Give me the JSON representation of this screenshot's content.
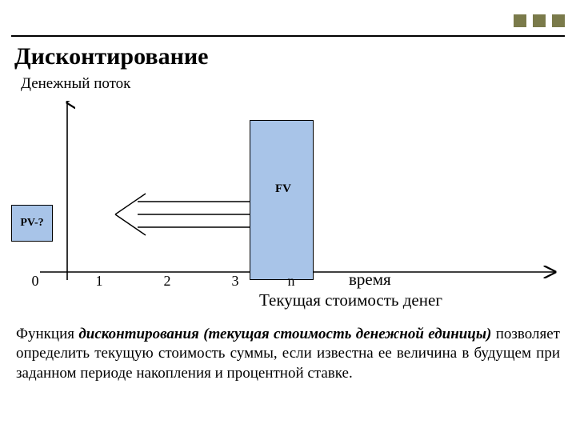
{
  "decor": {
    "square_color": "#7a7a4a",
    "rule_color": "#000000"
  },
  "title": "Дисконтирование",
  "yAxisLabel": "Денежный поток",
  "diagram": {
    "fv_label": "FV",
    "pv_label": "PV-?",
    "fill_color": "#a8c4e8",
    "border_color": "#000000",
    "xTicks": [
      {
        "label": "0",
        "xpx": 30
      },
      {
        "label": "1",
        "xpx": 110
      },
      {
        "label": "2",
        "xpx": 195
      },
      {
        "label": "3",
        "xpx": 280
      },
      {
        "label": "n",
        "xpx": 350
      }
    ],
    "xLabel": "время",
    "subLabel": "Текущая стоимость денег"
  },
  "description": {
    "lead": "Функция ",
    "emph": "дисконтирования (текущая стоимость денежной единицы)",
    "tail": " позволяет определить текущую стоимость суммы, если известна ее величина в будущем при заданном периоде накопления и процентной ставке."
  }
}
